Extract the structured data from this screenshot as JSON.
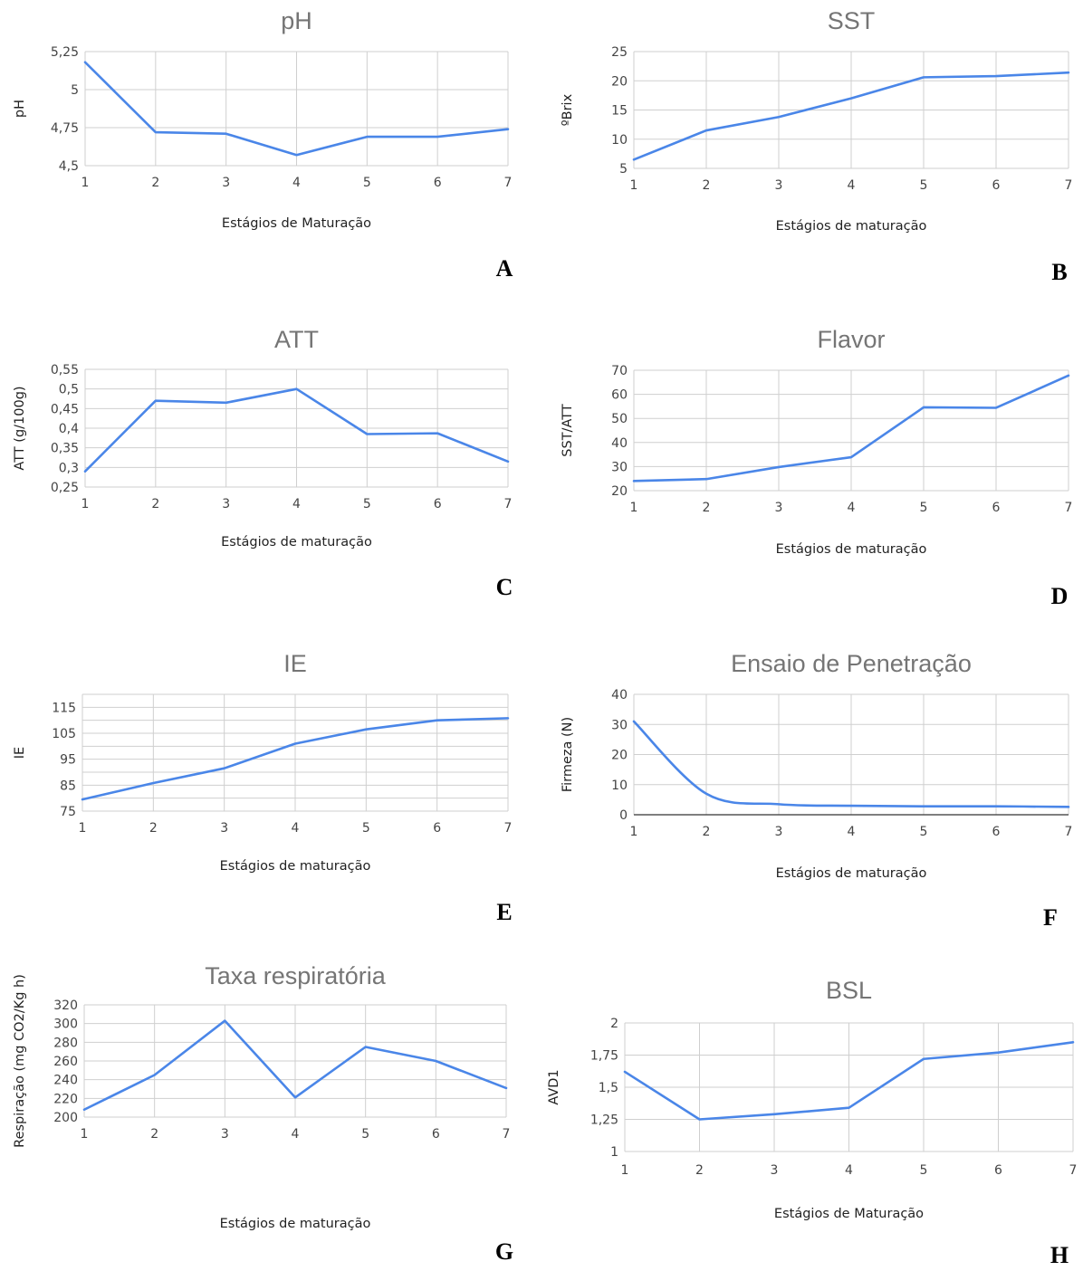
{
  "style": {
    "line_color": "#4a86e8",
    "grid_color": "#cfcfcf",
    "title_color": "#757575"
  },
  "chart_data": [
    {
      "id": "A",
      "letter": "A",
      "type": "line",
      "title": "pH",
      "xlabel": "Estágios de Maturação",
      "ylabel": "pH",
      "x": [
        1,
        2,
        3,
        4,
        5,
        6,
        7
      ],
      "xticks": [
        "1",
        "2",
        "3",
        "4",
        "5",
        "6",
        "7"
      ],
      "ylim": [
        4.5,
        5.25
      ],
      "yticks": [
        "4,5",
        "4,75",
        "5",
        "5,25"
      ],
      "series": [
        {
          "values": [
            5.18,
            4.72,
            4.71,
            4.57,
            4.69,
            4.69,
            4.74
          ]
        }
      ]
    },
    {
      "id": "B",
      "letter": "B",
      "type": "line",
      "title": "SST",
      "xlabel": "Estágios de maturação",
      "ylabel": "ºBrix",
      "x": [
        1,
        2,
        3,
        4,
        5,
        6,
        7
      ],
      "xticks": [
        "1",
        "2",
        "3",
        "4",
        "5",
        "6",
        "7"
      ],
      "ylim": [
        5,
        25
      ],
      "yticks": [
        "5",
        "10",
        "15",
        "20",
        "25"
      ],
      "series": [
        {
          "values": [
            6.5,
            11.5,
            13.8,
            17.0,
            20.6,
            20.8,
            21.4
          ]
        }
      ]
    },
    {
      "id": "C",
      "letter": "C",
      "type": "line",
      "title": "ATT",
      "xlabel": "Estágios de maturação",
      "ylabel": "ATT (g/100g)",
      "x": [
        1,
        2,
        3,
        4,
        5,
        6,
        7
      ],
      "xticks": [
        "1",
        "2",
        "3",
        "4",
        "5",
        "6",
        "7"
      ],
      "ylim": [
        0.25,
        0.55
      ],
      "yticks": [
        "0,25",
        "0,3",
        "0,35",
        "0,4",
        "0,45",
        "0,5",
        "0,55"
      ],
      "series": [
        {
          "values": [
            0.29,
            0.47,
            0.465,
            0.5,
            0.385,
            0.387,
            0.315
          ]
        }
      ]
    },
    {
      "id": "D",
      "letter": "D",
      "type": "line",
      "title": "Flavor",
      "xlabel": "Estágios de maturação",
      "ylabel": "SST/ATT",
      "x": [
        1,
        2,
        3,
        4,
        5,
        6,
        7
      ],
      "xticks": [
        "1",
        "2",
        "3",
        "4",
        "5",
        "6",
        "7"
      ],
      "ylim": [
        20,
        70
      ],
      "yticks": [
        "20",
        "30",
        "40",
        "50",
        "60",
        "70"
      ],
      "series": [
        {
          "values": [
            24.0,
            24.8,
            29.8,
            33.9,
            54.6,
            54.4,
            67.8
          ]
        }
      ]
    },
    {
      "id": "E",
      "letter": "E",
      "type": "line",
      "title": "IE",
      "xlabel": "Estágios de maturação",
      "ylabel": "IE",
      "x": [
        1,
        2,
        3,
        4,
        5,
        6,
        7
      ],
      "xticks": [
        "1",
        "2",
        "3",
        "4",
        "5",
        "6",
        "7"
      ],
      "ylim": [
        75,
        120
      ],
      "yticks": [
        "75",
        "85",
        "95",
        "105",
        "115"
      ],
      "series": [
        {
          "values": [
            79.5,
            85.8,
            91.5,
            101.0,
            106.5,
            110.0,
            110.8
          ]
        }
      ]
    },
    {
      "id": "F",
      "letter": "F",
      "type": "line",
      "title": "Ensaio de Penetração",
      "xlabel": "Estágios de maturação",
      "ylabel": "Firmeza (N)",
      "x": [
        1,
        2,
        3,
        4,
        5,
        6,
        7
      ],
      "xticks": [
        "1",
        "2",
        "3",
        "4",
        "5",
        "6",
        "7"
      ],
      "ylim": [
        0,
        40
      ],
      "yticks": [
        "0",
        "10",
        "20",
        "30",
        "40"
      ],
      "series": [
        {
          "values": [
            31.0,
            7.0,
            3.5,
            3.0,
            2.8,
            2.8,
            2.6
          ]
        }
      ]
    },
    {
      "id": "G",
      "letter": "G",
      "type": "line",
      "title": "Taxa respiratória",
      "xlabel": "Estágios de maturação",
      "ylabel": "Respiração (mg CO2/Kg h)",
      "x": [
        1,
        2,
        3,
        4,
        5,
        6,
        7
      ],
      "xticks": [
        "1",
        "2",
        "3",
        "4",
        "5",
        "6",
        "7"
      ],
      "ylim": [
        200,
        320
      ],
      "yticks": [
        "200",
        "220",
        "240",
        "260",
        "280",
        "300",
        "320"
      ],
      "series": [
        {
          "values": [
            208,
            245,
            303,
            221,
            275,
            260,
            231
          ]
        }
      ]
    },
    {
      "id": "H",
      "letter": "H",
      "type": "line",
      "title": "BSL",
      "xlabel": "Estágios de Maturação",
      "ylabel": "AVD1",
      "x": [
        1,
        2,
        3,
        4,
        5,
        6,
        7
      ],
      "xticks": [
        "1",
        "2",
        "3",
        "4",
        "5",
        "6",
        "7"
      ],
      "ylim": [
        1,
        2
      ],
      "yticks": [
        "1",
        "1,25",
        "1,5",
        "1,75",
        "2"
      ],
      "series": [
        {
          "values": [
            1.62,
            1.25,
            1.29,
            1.34,
            1.72,
            1.77,
            1.85
          ]
        }
      ]
    }
  ]
}
